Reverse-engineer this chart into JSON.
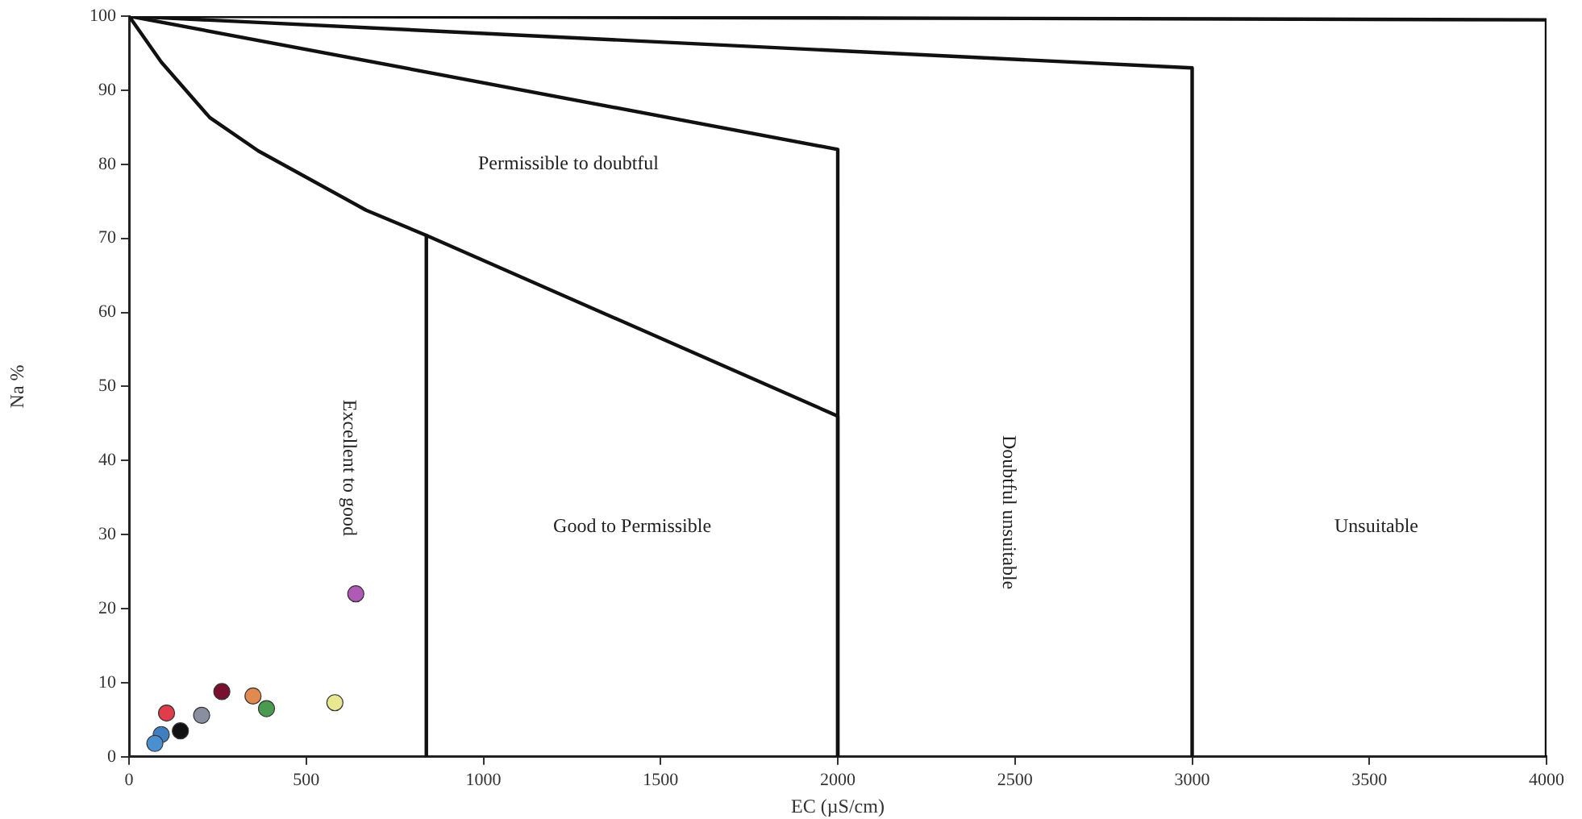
{
  "chart_data": {
    "type": "scatter",
    "xlabel": "EC (µS/cm)",
    "ylabel": "Na %",
    "xlim": [
      0,
      4000
    ],
    "ylim": [
      0,
      100
    ],
    "xticks": [
      0,
      500,
      1000,
      1500,
      2000,
      2500,
      3000,
      3500,
      4000
    ],
    "yticks": [
      0,
      10,
      20,
      30,
      40,
      50,
      60,
      70,
      80,
      90,
      100
    ],
    "grid": false,
    "legend": false,
    "series": [
      {
        "type": "line",
        "marker": "none",
        "color": "#111111",
        "x": [
          0,
          4000,
          4000
        ],
        "values": [
          100,
          99.5,
          0
        ]
      },
      {
        "type": "line",
        "marker": "none",
        "color": "#111111",
        "x": [
          0,
          3000,
          3000
        ],
        "values": [
          100,
          93,
          0
        ]
      },
      {
        "type": "line",
        "marker": "none",
        "color": "#111111",
        "x": [
          0,
          2000,
          2000
        ],
        "values": [
          100,
          82,
          0
        ]
      },
      {
        "type": "line",
        "marker": "none",
        "color": "#111111",
        "x": [
          0,
          91,
          228,
          365,
          669,
          839,
          2000,
          2000
        ],
        "values": [
          100,
          93.8,
          86.3,
          81.8,
          73.8,
          70.4,
          46,
          0
        ]
      },
      {
        "type": "line",
        "marker": "none",
        "color": "#111111",
        "x": [
          839,
          839
        ],
        "values": [
          70.4,
          0
        ]
      },
      {
        "marker": "circle",
        "x": [
          640,
          106,
          91,
          73,
          145,
          205,
          262,
          350,
          388,
          581
        ],
        "values": [
          22,
          5.9,
          3,
          1.8,
          3.5,
          5.6,
          8.8,
          8.2,
          6.5,
          7.3
        ],
        "colors": [
          "#b05ab8",
          "#e03c4a",
          "#3f7fc0",
          "#4a8fd0",
          "#111111",
          "#8a8fa0",
          "#7a1030",
          "#e08a50",
          "#4a9a50",
          "#e8e890"
        ]
      }
    ],
    "annotations": [
      "Permissible to doubtful",
      "Excellent to good",
      "Good to Permissible",
      "Doubtful unsuitable",
      "Unsuitable"
    ]
  }
}
